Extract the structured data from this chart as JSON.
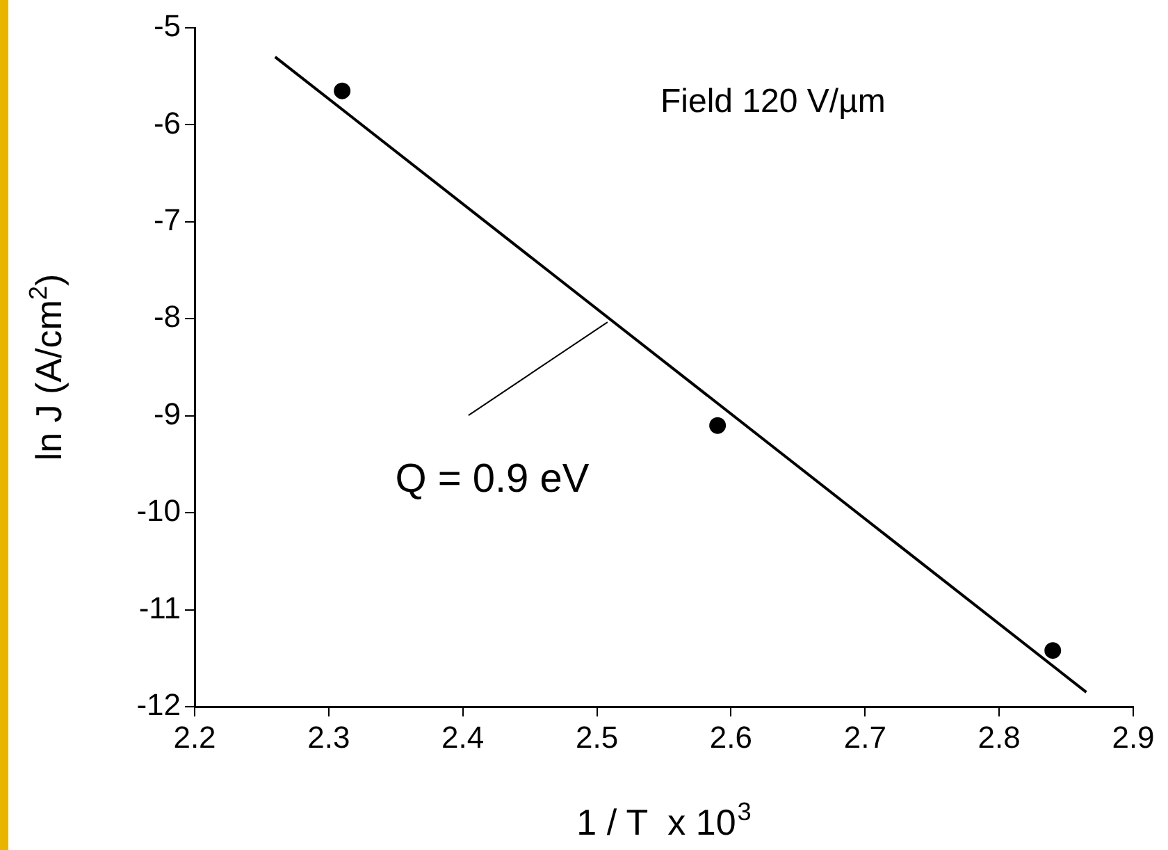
{
  "chart_data": {
    "type": "scatter",
    "xlabel": "1 / T  x 10$^{3}$",
    "ylabel": "ln J (A/cm$^{2}$)",
    "x": [
      2.31,
      2.59,
      2.84
    ],
    "series": [
      {
        "type": "scatter",
        "color": "#000000",
        "values": [
          -5.65,
          -9.1,
          -11.42
        ],
        "marker": "circle"
      },
      {
        "type": "line",
        "color": "#000000",
        "x": [
          2.26,
          2.865
        ],
        "values": [
          -5.3,
          -11.85
        ],
        "marker": "none",
        "line_style": "solid"
      }
    ],
    "xlim": [
      2.2,
      2.9
    ],
    "xticks": [
      2.2,
      2.3,
      2.4,
      2.5,
      2.6,
      2.7,
      2.8,
      2.9
    ],
    "ylim": [
      -12,
      -5
    ],
    "yticks": [
      -12,
      -11,
      -10,
      -9,
      -8,
      -7,
      -6,
      -5
    ],
    "grid": false,
    "legend": false,
    "annotations": [
      "Field 120 V/µm",
      {
        "text": "Q = 0.9 eV",
        "x": 2.51,
        "y": -8.02
      }
    ]
  }
}
